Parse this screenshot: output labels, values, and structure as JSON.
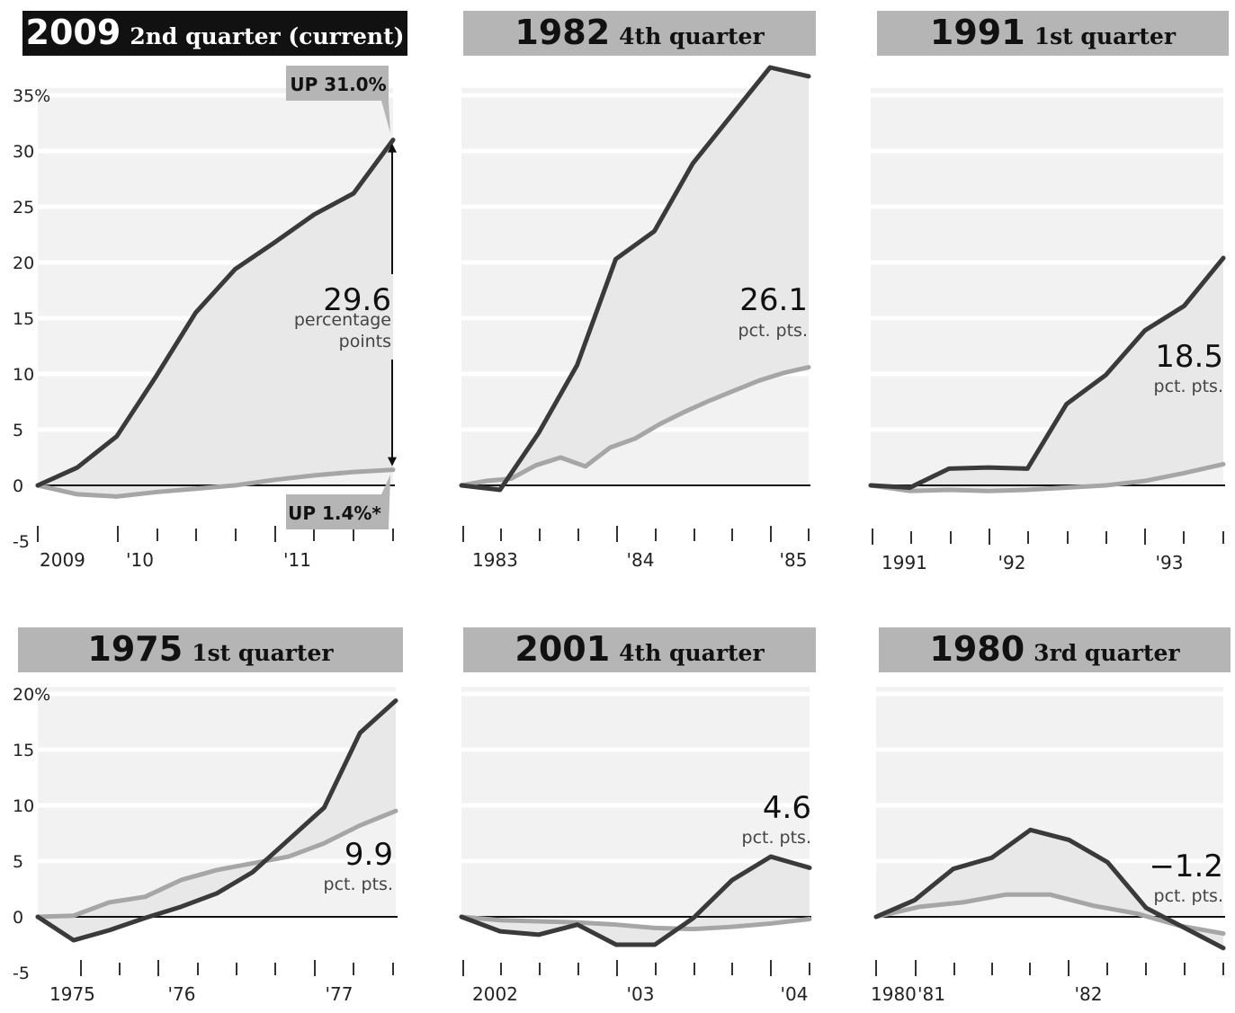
{
  "chart_data": [
    {
      "type": "line",
      "title": "2009",
      "subtitle": "2nd quarter (current)",
      "ylim": [
        -5,
        35
      ],
      "yticks": [
        "35%",
        "30",
        "25",
        "20",
        "15",
        "10",
        "5",
        "0",
        "-5"
      ],
      "xticks": [
        "2009",
        "'10",
        "'11"
      ],
      "gap_value": "29.6",
      "gap_label": [
        "percentage",
        "points"
      ],
      "callouts": [
        "UP 31.0%",
        "UP 1.4%*"
      ],
      "series": [
        {
          "values": [
            0,
            1.6,
            4.4,
            9.8,
            15.5,
            19.4,
            21.8,
            24.3,
            26.2,
            31.0
          ]
        },
        {
          "values": [
            0,
            -0.8,
            -1.0,
            -0.6,
            -0.3,
            0,
            0.5,
            0.9,
            1.2,
            1.4
          ]
        }
      ]
    },
    {
      "type": "line",
      "title": "1982",
      "subtitle": "4th quarter",
      "ylim": [
        -5,
        35
      ],
      "xticks": [
        "1983",
        "'84",
        "'85"
      ],
      "gap_value": "26.1",
      "gap_label": [
        "pct. pts."
      ],
      "series": [
        {
          "values": [
            0,
            -0.4,
            4.7,
            10.8,
            20.3,
            22.8,
            28.9,
            33.2,
            37.5,
            36.7
          ]
        },
        {
          "values": [
            0,
            0.4,
            0.6,
            1.8,
            2.5,
            1.7,
            3.4,
            4.2,
            5.5,
            6.6,
            7.6,
            8.5,
            9.4,
            10.1,
            10.6
          ]
        }
      ]
    },
    {
      "type": "line",
      "title": "1991",
      "subtitle": "1st quarter",
      "ylim": [
        -5,
        35
      ],
      "xticks": [
        "1991",
        "'92",
        "'93"
      ],
      "gap_value": "18.5",
      "gap_label": [
        "pct. pts."
      ],
      "series": [
        {
          "values": [
            0,
            -0.2,
            1.5,
            1.6,
            1.5,
            7.3,
            9.9,
            13.9,
            16.1,
            20.4
          ]
        },
        {
          "values": [
            0,
            -0.5,
            -0.4,
            -0.5,
            -0.4,
            -0.2,
            0,
            0.4,
            1.1,
            1.9
          ]
        }
      ]
    },
    {
      "type": "line",
      "title": "1975",
      "subtitle": "1st quarter",
      "ylim": [
        -5,
        20
      ],
      "yticks": [
        "20%",
        "15",
        "10",
        "5",
        "0",
        "-5"
      ],
      "xticks": [
        "1975",
        "'76",
        "'77"
      ],
      "gap_value": "9.9",
      "gap_label": [
        "pct. pts."
      ],
      "series": [
        {
          "values": [
            0,
            -2.1,
            -1.2,
            -0.1,
            0.9,
            2.1,
            4.0,
            6.9,
            9.8,
            16.5,
            19.4
          ]
        },
        {
          "values": [
            0,
            0.1,
            1.3,
            1.8,
            3.3,
            4.2,
            4.8,
            5.4,
            6.6,
            8.2,
            9.5
          ]
        }
      ]
    },
    {
      "type": "line",
      "title": "2001",
      "subtitle": "4th quarter",
      "ylim": [
        -5,
        20
      ],
      "xticks": [
        "2002",
        "'03",
        "'04"
      ],
      "gap_value": "4.6",
      "gap_label": [
        "pct. pts."
      ],
      "series": [
        {
          "values": [
            0,
            -1.3,
            -1.6,
            -0.7,
            -2.5,
            -2.5,
            -0.1,
            3.3,
            5.4,
            4.4
          ]
        },
        {
          "values": [
            0,
            -0.3,
            -0.4,
            -0.5,
            -0.7,
            -1.0,
            -1.1,
            -0.9,
            -0.6,
            -0.2
          ]
        }
      ]
    },
    {
      "type": "line",
      "title": "1980",
      "subtitle": "3rd quarter",
      "ylim": [
        -5,
        20
      ],
      "xticks": [
        "1980",
        "'81",
        "'82"
      ],
      "gap_value": "−1.2",
      "gap_label": [
        "pct. pts."
      ],
      "series": [
        {
          "values": [
            0,
            1.5,
            4.3,
            5.3,
            7.8,
            6.9,
            4.9,
            0.8,
            -1.0,
            -2.8
          ]
        },
        {
          "values": [
            0,
            0.9,
            1.3,
            2.0,
            2.0,
            1.0,
            0.3,
            -0.8,
            -1.5
          ]
        }
      ]
    }
  ]
}
